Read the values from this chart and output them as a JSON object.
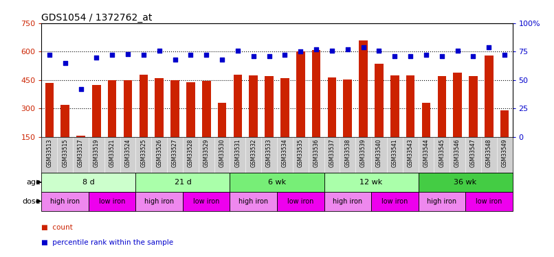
{
  "title": "GDS1054 / 1372762_at",
  "samples": [
    "GSM33513",
    "GSM33515",
    "GSM33517",
    "GSM33519",
    "GSM33521",
    "GSM33524",
    "GSM33525",
    "GSM33526",
    "GSM33527",
    "GSM33528",
    "GSM33529",
    "GSM33530",
    "GSM33531",
    "GSM33532",
    "GSM33533",
    "GSM33534",
    "GSM33535",
    "GSM33536",
    "GSM33537",
    "GSM33538",
    "GSM33539",
    "GSM33540",
    "GSM33541",
    "GSM33543",
    "GSM33544",
    "GSM33545",
    "GSM33546",
    "GSM33547",
    "GSM33548",
    "GSM33549"
  ],
  "counts": [
    435,
    320,
    157,
    425,
    450,
    450,
    480,
    460,
    450,
    440,
    447,
    330,
    480,
    475,
    470,
    460,
    600,
    610,
    465,
    452,
    660,
    535,
    475,
    475,
    330,
    470,
    490,
    470,
    580,
    290
  ],
  "percentiles": [
    72,
    65,
    42,
    70,
    72,
    73,
    72,
    76,
    68,
    72,
    72,
    68,
    76,
    71,
    71,
    72,
    75,
    77,
    76,
    77,
    79,
    76,
    71,
    71,
    72,
    71,
    76,
    71,
    79,
    72
  ],
  "ylim_left": [
    150,
    750
  ],
  "ylim_right": [
    0,
    100
  ],
  "yticks_left": [
    150,
    300,
    450,
    600,
    750
  ],
  "yticks_right": [
    0,
    25,
    50,
    75,
    100
  ],
  "bar_color": "#cc2200",
  "dot_color": "#0000cc",
  "age_groups": [
    {
      "label": "8 d",
      "start": 0,
      "end": 6,
      "color": "#ccffcc"
    },
    {
      "label": "21 d",
      "start": 6,
      "end": 12,
      "color": "#aaffaa"
    },
    {
      "label": "6 wk",
      "start": 12,
      "end": 18,
      "color": "#77ee77"
    },
    {
      "label": "12 wk",
      "start": 18,
      "end": 24,
      "color": "#aaffaa"
    },
    {
      "label": "36 wk",
      "start": 24,
      "end": 30,
      "color": "#44cc44"
    }
  ],
  "dose_groups": [
    {
      "label": "high iron",
      "start": 0,
      "end": 3,
      "color": "#ee88ee"
    },
    {
      "label": "low iron",
      "start": 3,
      "end": 6,
      "color": "#ee00ee"
    },
    {
      "label": "high iron",
      "start": 6,
      "end": 9,
      "color": "#ee88ee"
    },
    {
      "label": "low iron",
      "start": 9,
      "end": 12,
      "color": "#ee00ee"
    },
    {
      "label": "high iron",
      "start": 12,
      "end": 15,
      "color": "#ee88ee"
    },
    {
      "label": "low iron",
      "start": 15,
      "end": 18,
      "color": "#ee00ee"
    },
    {
      "label": "high iron",
      "start": 18,
      "end": 21,
      "color": "#ee88ee"
    },
    {
      "label": "low iron",
      "start": 21,
      "end": 24,
      "color": "#ee00ee"
    },
    {
      "label": "high iron",
      "start": 24,
      "end": 27,
      "color": "#ee88ee"
    },
    {
      "label": "low iron",
      "start": 27,
      "end": 30,
      "color": "#ee00ee"
    }
  ],
  "background_color": "#ffffff",
  "ticklabel_bg": "#d0d0d0"
}
